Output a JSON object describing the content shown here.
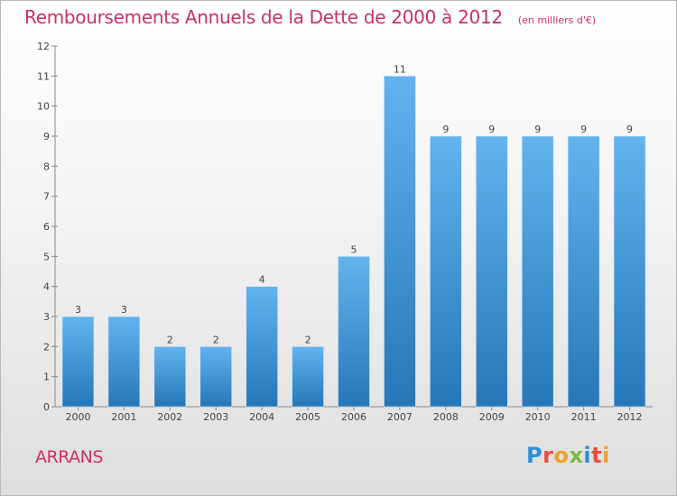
{
  "title": "Remboursements Annuels de la Dette de 2000 à 2012",
  "unit": "(en milliers d'€)",
  "commune": "ARRANS",
  "logo": "Proxiti",
  "colors": {
    "title": "#cc2f6a",
    "bar_light": "#5fb0ec",
    "bar_dark": "#2a7ec0"
  },
  "chart_data": {
    "type": "bar",
    "categories": [
      "2000",
      "2001",
      "2002",
      "2003",
      "2004",
      "2005",
      "2006",
      "2007",
      "2008",
      "2009",
      "2010",
      "2011",
      "2012"
    ],
    "values": [
      3,
      3,
      2,
      2,
      4,
      2,
      5,
      11,
      9,
      9,
      9,
      9,
      9
    ],
    "ylim": [
      0,
      12
    ],
    "yticks": [
      0,
      1,
      2,
      3,
      4,
      5,
      6,
      7,
      8,
      9,
      10,
      11,
      12
    ],
    "grid": false
  }
}
